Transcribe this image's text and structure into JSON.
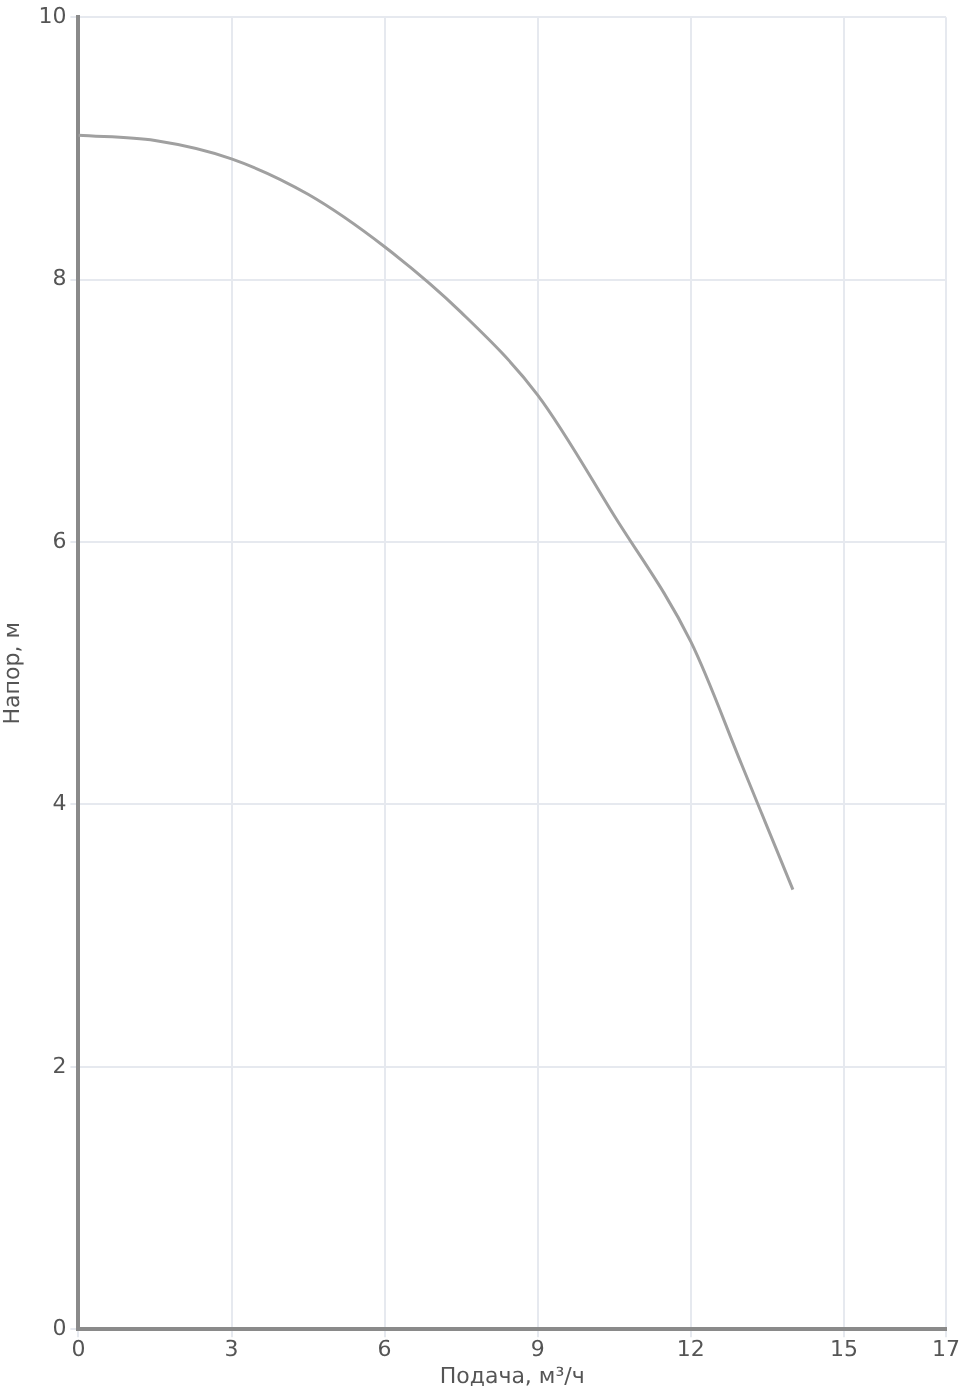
{
  "chart_data": {
    "type": "line",
    "xlabel": "Подача, м³/ч",
    "ylabel": "Напор, м",
    "series": [
      {
        "color": "#a0a0a0",
        "x": [
          0,
          1.5,
          3,
          4.5,
          6,
          7.5,
          9,
          10.5,
          12,
          13,
          14
        ],
        "values": [
          9.1,
          9.06,
          8.92,
          8.65,
          8.25,
          7.75,
          7.12,
          6.2,
          5.24,
          4.3,
          3.35
        ]
      }
    ],
    "xlim": [
      0,
      17
    ],
    "xticks": [
      0,
      3,
      6,
      9,
      12,
      15,
      17
    ],
    "ylim": [
      0,
      10
    ],
    "yticks": [
      0,
      2,
      4,
      6,
      8,
      10
    ],
    "grid": true,
    "legend": false,
    "marker": "none",
    "line_style": "solid"
  }
}
